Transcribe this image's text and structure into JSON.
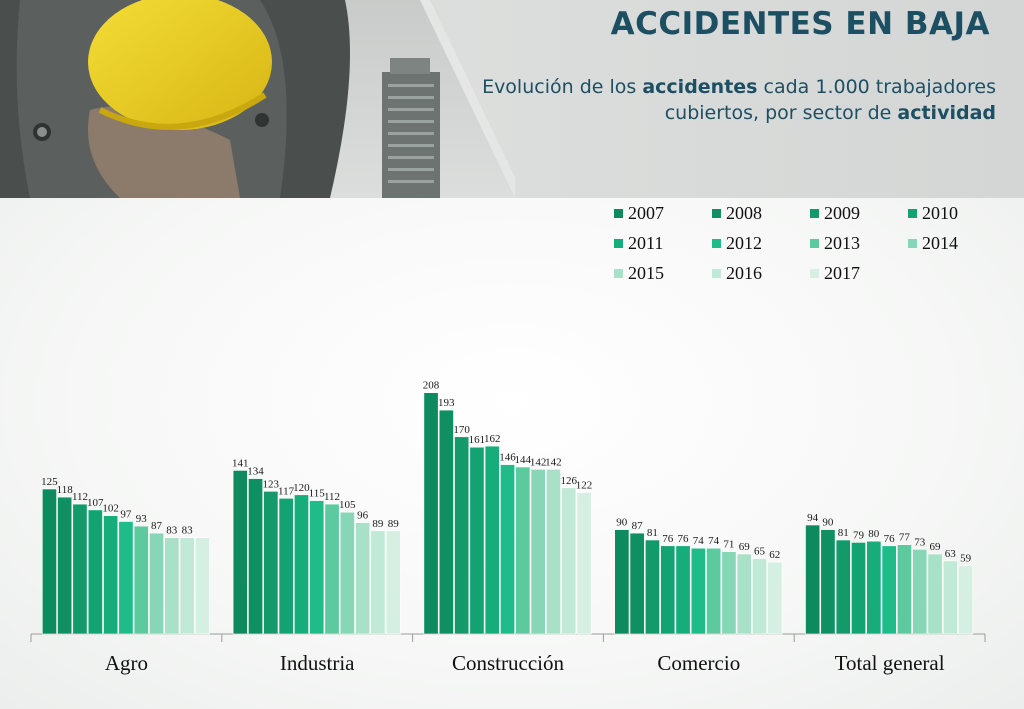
{
  "header": {
    "title": "ACCIDENTES EN BAJA",
    "subtitle_parts": [
      "Evolución de los ",
      "accidentes",
      " cada 1.000 trabajadores cubiertos, por sector de ",
      "actividad"
    ]
  },
  "colors": {
    "title": "#1d4f63",
    "series": [
      "#0d8a5e",
      "#108f63",
      "#13996a",
      "#13a272",
      "#16ad7b",
      "#1fbb88",
      "#5cc99f",
      "#87d6b7",
      "#a8e0c8",
      "#c1e9d7",
      "#d5f0e3"
    ]
  },
  "chart_data": {
    "type": "bar",
    "title": "Evolución de los accidentes cada 1.000 trabajadores cubiertos, por sector de actividad",
    "xlabel": "",
    "ylabel": "",
    "ylim": [
      0,
      220
    ],
    "grid": false,
    "legend_position": "top-right",
    "categories": [
      "Agro",
      "Industria",
      "Construcción",
      "Comercio",
      "Total general"
    ],
    "series": [
      {
        "name": "2007",
        "values": [
          125,
          141,
          208,
          90,
          94
        ]
      },
      {
        "name": "2008",
        "values": [
          118,
          134,
          193,
          87,
          90
        ]
      },
      {
        "name": "2009",
        "values": [
          112,
          123,
          170,
          81,
          81
        ]
      },
      {
        "name": "2010",
        "values": [
          107,
          117,
          161,
          76,
          79
        ]
      },
      {
        "name": "2011",
        "values": [
          102,
          120,
          162,
          76,
          80
        ]
      },
      {
        "name": "2012",
        "values": [
          97,
          115,
          146,
          74,
          76
        ]
      },
      {
        "name": "2013",
        "values": [
          93,
          112,
          144,
          74,
          77
        ]
      },
      {
        "name": "2014",
        "values": [
          87,
          105,
          142,
          71,
          73
        ]
      },
      {
        "name": "2015",
        "values": [
          83,
          96,
          142,
          69,
          69
        ]
      },
      {
        "name": "2016",
        "values": [
          83,
          89,
          126,
          65,
          63
        ]
      },
      {
        "name": "2017",
        "values": [
          83,
          89,
          122,
          62,
          59
        ]
      }
    ]
  }
}
